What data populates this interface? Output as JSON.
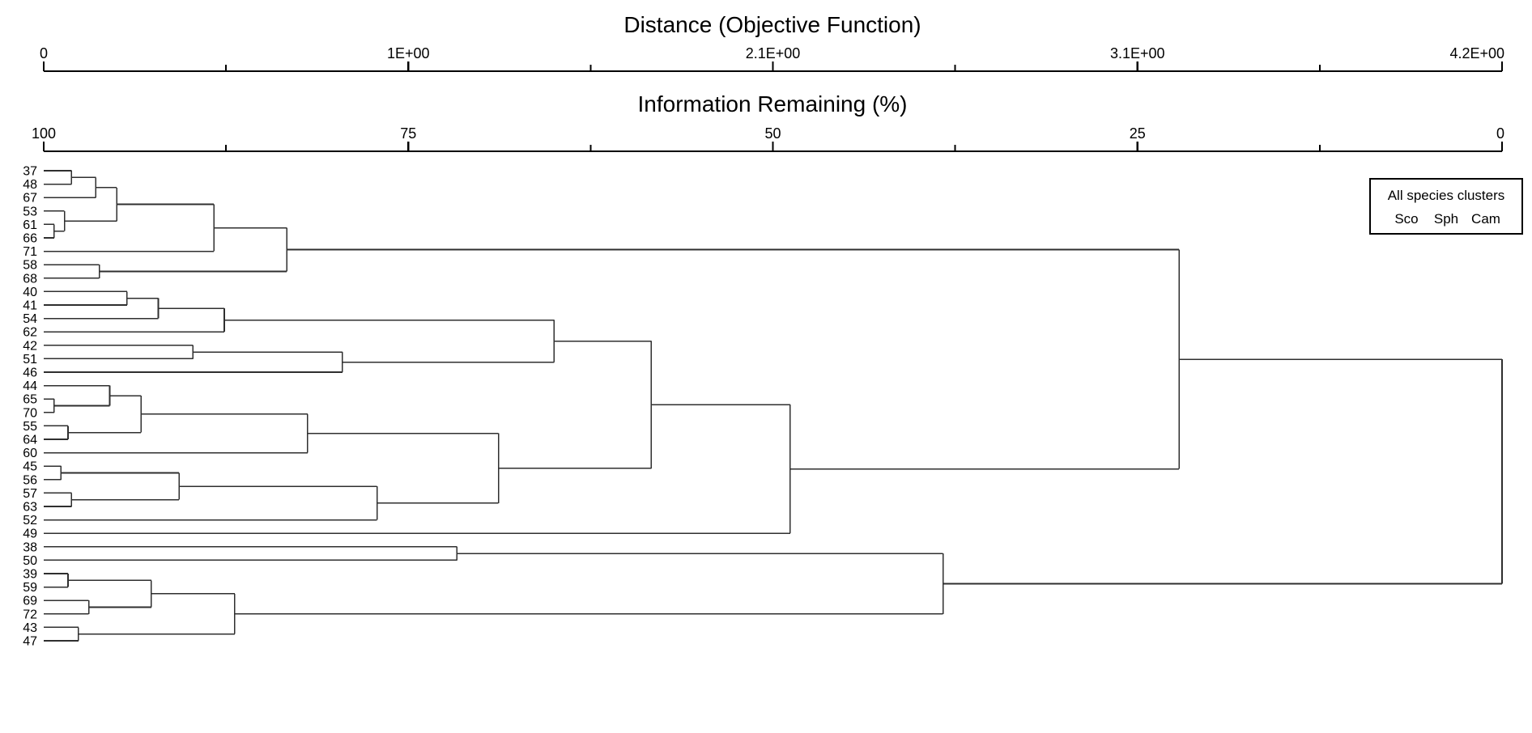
{
  "chart_data": {
    "type": "dendrogram",
    "orientation": "left-to-right",
    "distance_axis": {
      "title": "Distance (Objective Function)",
      "ticks": [
        "0",
        "1E+00",
        "2.1E+00",
        "3.1E+00",
        "4.2E+00"
      ],
      "range": [
        0,
        4.2
      ]
    },
    "information_axis": {
      "title": "Information Remaining (%)",
      "ticks": [
        "100",
        "75",
        "50",
        "25",
        "0"
      ],
      "range": [
        100,
        0
      ]
    },
    "groups": {
      "Sco": "#0E7C76",
      "Sph": "#2B2B9D",
      "Cam": "#E8920E"
    },
    "leaves": [
      {
        "label": "37",
        "group": "Sco"
      },
      {
        "label": "48",
        "group": "Sco"
      },
      {
        "label": "67",
        "group": "Sco"
      },
      {
        "label": "53",
        "group": "Sco"
      },
      {
        "label": "61",
        "group": "Sco"
      },
      {
        "label": "66",
        "group": "Sco"
      },
      {
        "label": "71",
        "group": "Sco"
      },
      {
        "label": "58",
        "group": "Sco"
      },
      {
        "label": "68",
        "group": "Sco"
      },
      {
        "label": "40",
        "group": "Cam"
      },
      {
        "label": "41",
        "group": "Cam"
      },
      {
        "label": "54",
        "group": "Cam"
      },
      {
        "label": "62",
        "group": "Cam"
      },
      {
        "label": "42",
        "group": "Cam"
      },
      {
        "label": "51",
        "group": "Cam"
      },
      {
        "label": "46",
        "group": "Cam"
      },
      {
        "label": "44",
        "group": "Cam"
      },
      {
        "label": "65",
        "group": "Cam"
      },
      {
        "label": "70",
        "group": "Cam"
      },
      {
        "label": "55",
        "group": "Cam"
      },
      {
        "label": "64",
        "group": "Cam"
      },
      {
        "label": "60",
        "group": "Cam"
      },
      {
        "label": "45",
        "group": "Cam"
      },
      {
        "label": "56",
        "group": "Cam"
      },
      {
        "label": "57",
        "group": "Cam"
      },
      {
        "label": "63",
        "group": "Cam"
      },
      {
        "label": "52",
        "group": "Cam"
      },
      {
        "label": "49",
        "group": "Cam"
      },
      {
        "label": "38",
        "group": "Sph"
      },
      {
        "label": "50",
        "group": "Sph"
      },
      {
        "label": "39",
        "group": "Sph"
      },
      {
        "label": "59",
        "group": "Sph"
      },
      {
        "label": "69",
        "group": "Sph"
      },
      {
        "label": "72",
        "group": "Sph"
      },
      {
        "label": "43",
        "group": "Sph"
      },
      {
        "label": "47",
        "group": "Sph"
      }
    ],
    "merges": [
      {
        "a": "L61",
        "b": "L66",
        "d": 0.03
      },
      {
        "a": "L53",
        "b": "N0",
        "d": 0.06
      },
      {
        "a": "L37",
        "b": "L48",
        "d": 0.08
      },
      {
        "a": "N2",
        "b": "L67",
        "d": 0.15
      },
      {
        "a": "N3",
        "b": "N1",
        "d": 0.21
      },
      {
        "a": "N4",
        "b": "L71",
        "d": 0.49
      },
      {
        "a": "L58",
        "b": "L68",
        "d": 0.16
      },
      {
        "a": "N5",
        "b": "N6",
        "d": 0.7
      },
      {
        "a": "L40",
        "b": "L41",
        "d": 0.24
      },
      {
        "a": "N8",
        "b": "L54",
        "d": 0.33
      },
      {
        "a": "N9",
        "b": "L62",
        "d": 0.52
      },
      {
        "a": "L42",
        "b": "L51",
        "d": 0.43
      },
      {
        "a": "N11",
        "b": "L46",
        "d": 0.86
      },
      {
        "a": "N10",
        "b": "N12",
        "d": 1.47
      },
      {
        "a": "L65",
        "b": "L70",
        "d": 0.03
      },
      {
        "a": "L44",
        "b": "N14",
        "d": 0.19
      },
      {
        "a": "L55",
        "b": "L64",
        "d": 0.07
      },
      {
        "a": "N15",
        "b": "N16",
        "d": 0.28
      },
      {
        "a": "N17",
        "b": "L60",
        "d": 0.76
      },
      {
        "a": "L45",
        "b": "L56",
        "d": 0.05
      },
      {
        "a": "L57",
        "b": "L63",
        "d": 0.08
      },
      {
        "a": "N19",
        "b": "N20",
        "d": 0.39
      },
      {
        "a": "N21",
        "b": "L52",
        "d": 0.96
      },
      {
        "a": "N18",
        "b": "N22",
        "d": 1.31
      },
      {
        "a": "N13",
        "b": "N23",
        "d": 1.75
      },
      {
        "a": "N24",
        "b": "L49",
        "d": 2.15
      },
      {
        "a": "N7",
        "b": "N25",
        "d": 3.27
      },
      {
        "a": "L38",
        "b": "L50",
        "d": 1.19
      },
      {
        "a": "L39",
        "b": "L59",
        "d": 0.07
      },
      {
        "a": "L69",
        "b": "L72",
        "d": 0.13
      },
      {
        "a": "N28",
        "b": "N29",
        "d": 0.31
      },
      {
        "a": "L43",
        "b": "L47",
        "d": 0.1
      },
      {
        "a": "N30",
        "b": "N31",
        "d": 0.55
      },
      {
        "a": "N27",
        "b": "N32",
        "d": 2.59
      },
      {
        "a": "N26",
        "b": "N33",
        "d": 4.2
      }
    ]
  },
  "legend": {
    "title": "All species clusters",
    "entries": [
      {
        "label": "Sco",
        "color": "#0E7C76"
      },
      {
        "label": "Sph",
        "color": "#2B2B9D"
      },
      {
        "label": "Cam",
        "color": "#E8920E"
      }
    ]
  },
  "style": {
    "branch_color": "#2F2F2F"
  }
}
